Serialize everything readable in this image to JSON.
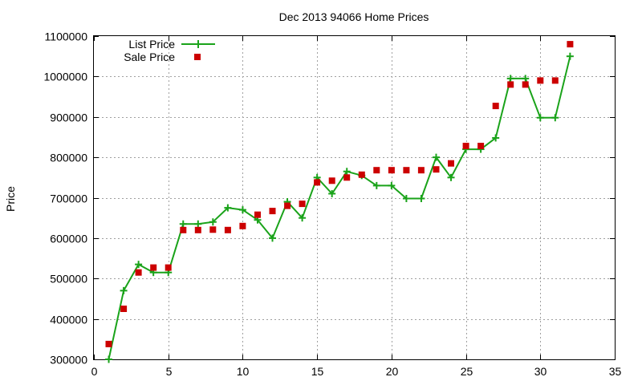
{
  "chart_data": {
    "type": "line",
    "title": "Dec 2013 94066 Home Prices",
    "xlabel": "",
    "ylabel": "Price",
    "xlim": [
      0,
      35
    ],
    "ylim": [
      300000,
      1100000
    ],
    "x_ticks": [
      0,
      5,
      10,
      15,
      20,
      25,
      30,
      35
    ],
    "y_ticks": [
      300000,
      400000,
      500000,
      600000,
      700000,
      800000,
      900000,
      1000000,
      1100000
    ],
    "grid": true,
    "legend_position": "top-left",
    "series": [
      {
        "name": "List Price",
        "style": "line-with-plus-markers",
        "color": "#1aa31a",
        "x": [
          1,
          2,
          3,
          4,
          5,
          6,
          7,
          8,
          9,
          10,
          11,
          12,
          13,
          14,
          15,
          16,
          17,
          18,
          19,
          20,
          21,
          22,
          23,
          24,
          25,
          26,
          27,
          28,
          29,
          30,
          31,
          32
        ],
        "y": [
          300000,
          470000,
          535000,
          515000,
          515000,
          635000,
          635000,
          640000,
          675000,
          670000,
          645000,
          600000,
          690000,
          650000,
          750000,
          710000,
          765000,
          755000,
          730000,
          730000,
          698000,
          698000,
          800000,
          750000,
          820000,
          820000,
          848000,
          995000,
          995000,
          898000,
          898000,
          1050000
        ]
      },
      {
        "name": "Sale Price",
        "style": "square-markers",
        "color": "#cc0000",
        "x": [
          1,
          2,
          3,
          4,
          5,
          6,
          7,
          8,
          9,
          10,
          11,
          12,
          13,
          14,
          15,
          16,
          17,
          18,
          19,
          20,
          21,
          22,
          23,
          24,
          25,
          26,
          27,
          28,
          29,
          30,
          31,
          32
        ],
        "y": [
          338000,
          425000,
          515000,
          527000,
          527000,
          620000,
          620000,
          621000,
          620000,
          630000,
          658000,
          667000,
          680000,
          685000,
          738000,
          742000,
          750000,
          757000,
          768000,
          768000,
          768000,
          768000,
          770000,
          785000,
          828000,
          828000,
          927000,
          980000,
          980000,
          990000,
          990000,
          1080000
        ]
      }
    ]
  }
}
